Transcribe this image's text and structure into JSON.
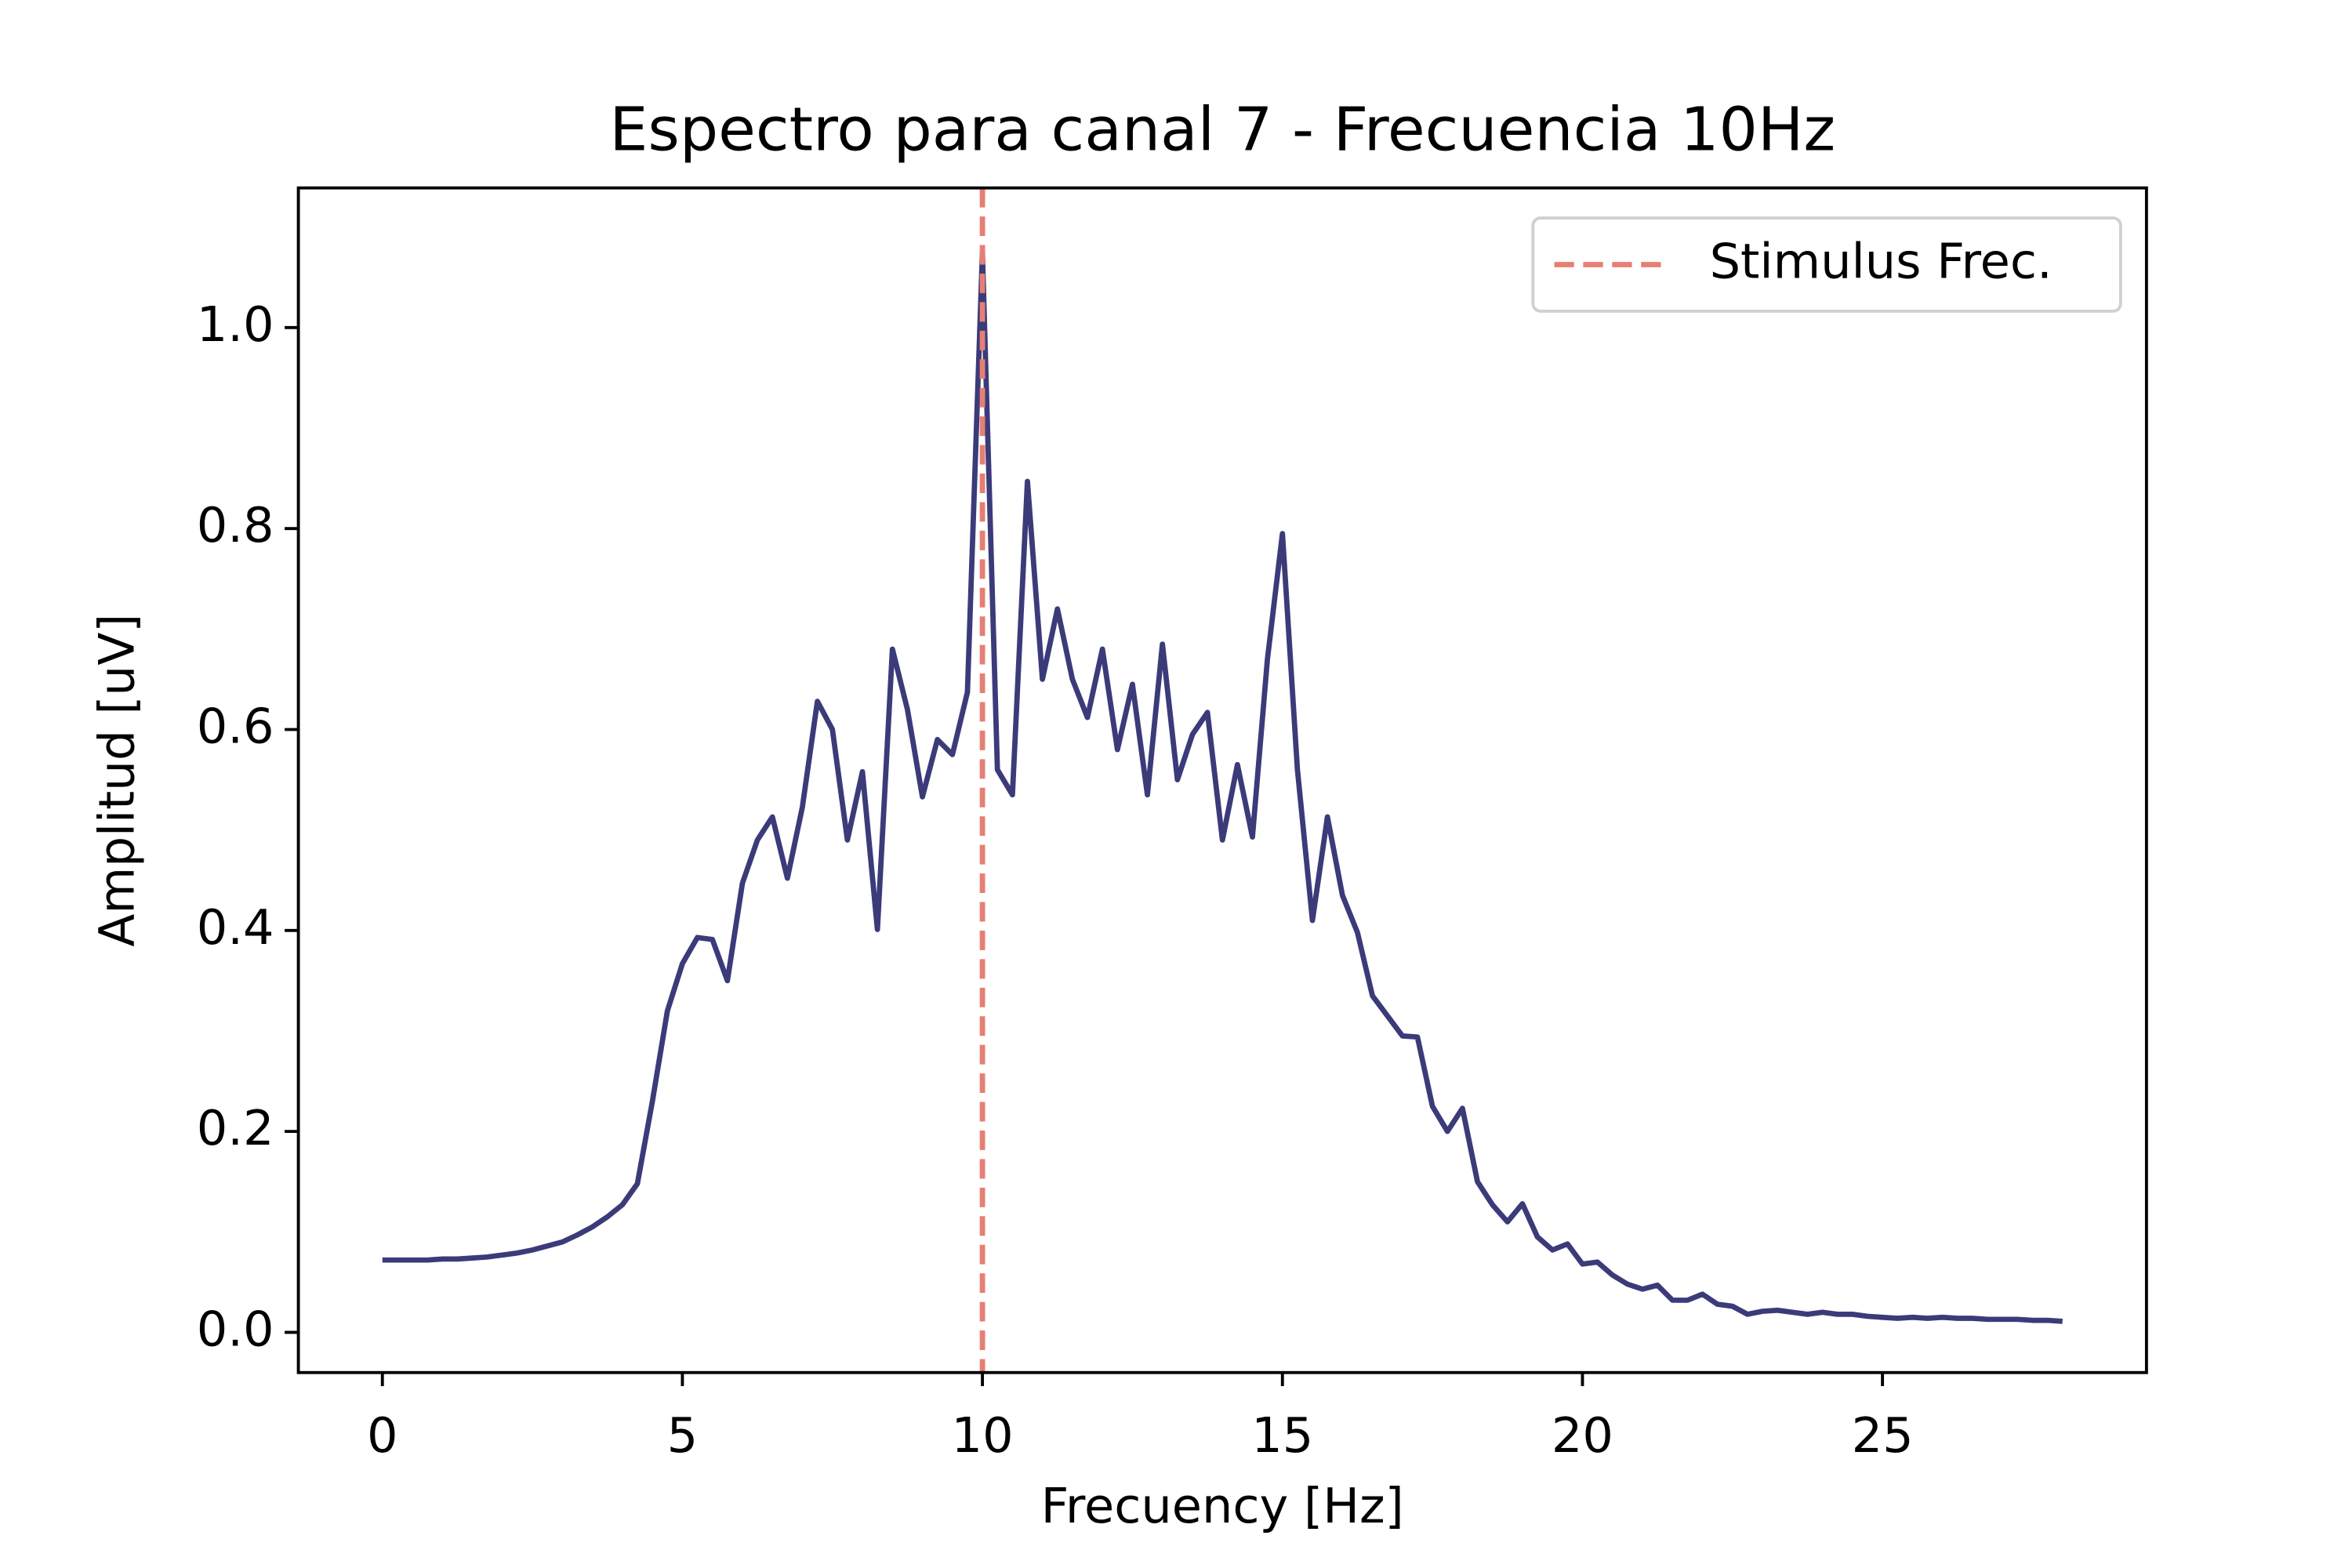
{
  "chart_data": {
    "type": "line",
    "title": "Espectro para canal 7 - Frecuencia 10Hz",
    "xlabel": "Frecuency [Hz]",
    "ylabel": "Amplitud [uV]",
    "x": [
      0,
      0.25,
      0.5,
      0.75,
      1,
      1.25,
      1.5,
      1.75,
      2,
      2.25,
      2.5,
      2.75,
      3,
      3.25,
      3.5,
      3.75,
      4,
      4.25,
      4.5,
      4.75,
      5,
      5.25,
      5.5,
      5.75,
      6,
      6.25,
      6.5,
      6.75,
      7,
      7.25,
      7.5,
      7.75,
      8,
      8.25,
      8.5,
      8.75,
      9,
      9.25,
      9.5,
      9.75,
      10,
      10.25,
      10.5,
      10.75,
      11,
      11.25,
      11.5,
      11.75,
      12,
      12.25,
      12.5,
      12.75,
      13,
      13.25,
      13.5,
      13.75,
      14,
      14.25,
      14.5,
      14.75,
      15,
      15.25,
      15.5,
      15.75,
      16,
      16.25,
      16.5,
      16.75,
      17,
      17.25,
      17.5,
      17.75,
      18,
      18.25,
      18.5,
      18.75,
      19,
      19.25,
      19.5,
      19.75,
      20,
      20.25,
      20.5,
      20.75,
      21,
      21.25,
      21.5,
      21.75,
      22,
      22.25,
      22.5,
      22.75,
      23,
      23.25,
      23.5,
      23.75,
      24,
      24.25,
      24.5,
      24.75,
      25,
      25.25,
      25.5,
      25.75,
      26,
      26.25,
      26.5,
      26.75,
      27,
      27.25,
      27.5,
      27.75,
      28
    ],
    "series": [
      {
        "color": "#3b3b7a",
        "values": [
          0.072,
          0.072,
          0.072,
          0.072,
          0.073,
          0.073,
          0.074,
          0.075,
          0.077,
          0.079,
          0.082,
          0.086,
          0.09,
          0.097,
          0.105,
          0.115,
          0.127,
          0.148,
          0.23,
          0.32,
          0.367,
          0.393,
          0.391,
          0.35,
          0.447,
          0.49,
          0.513,
          0.452,
          0.523,
          0.628,
          0.6,
          0.49,
          0.558,
          0.401,
          0.68,
          0.62,
          0.533,
          0.59,
          0.575,
          0.637,
          1.075,
          0.56,
          0.535,
          0.847,
          0.65,
          0.72,
          0.65,
          0.612,
          0.68,
          0.58,
          0.645,
          0.535,
          0.685,
          0.55,
          0.595,
          0.617,
          0.49,
          0.565,
          0.493,
          0.67,
          0.795,
          0.56,
          0.41,
          0.513,
          0.435,
          0.398,
          0.335,
          0.315,
          0.295,
          0.294,
          0.225,
          0.2,
          0.223,
          0.15,
          0.127,
          0.11,
          0.128,
          0.095,
          0.082,
          0.088,
          0.068,
          0.07,
          0.057,
          0.048,
          0.043,
          0.047,
          0.032,
          0.032,
          0.038,
          0.028,
          0.026,
          0.018,
          0.021,
          0.022,
          0.02,
          0.018,
          0.02,
          0.018,
          0.018,
          0.016,
          0.015,
          0.014,
          0.015,
          0.014,
          0.015,
          0.014,
          0.014,
          0.013,
          0.013,
          0.013,
          0.012,
          0.012,
          0.011
        ]
      }
    ],
    "vlines": [
      {
        "x": 10,
        "name": "Stimulus Frec.",
        "color": "#e67f73"
      }
    ],
    "xlim": [
      -1.4,
      29.4
    ],
    "ylim": [
      -0.04,
      1.139
    ],
    "xticks": [
      0,
      5,
      10,
      15,
      20,
      25
    ],
    "yticks": [
      {
        "value": 0,
        "label": "0.0"
      },
      0.2,
      0.4,
      0.6,
      0.8,
      {
        "value": 1,
        "label": "1.0"
      }
    ],
    "legend": "upper right"
  }
}
